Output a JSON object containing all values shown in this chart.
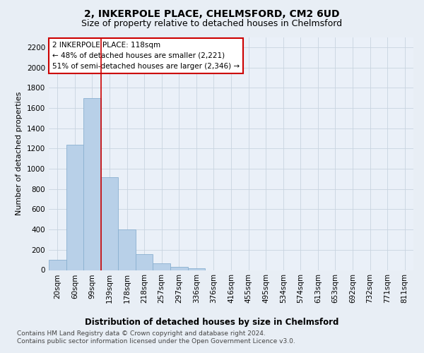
{
  "title": "2, INKERPOLE PLACE, CHELMSFORD, CM2 6UD",
  "subtitle": "Size of property relative to detached houses in Chelmsford",
  "xlabel": "Distribution of detached houses by size in Chelmsford",
  "ylabel": "Number of detached properties",
  "bar_labels": [
    "20sqm",
    "60sqm",
    "99sqm",
    "139sqm",
    "178sqm",
    "218sqm",
    "257sqm",
    "297sqm",
    "336sqm",
    "376sqm",
    "416sqm",
    "455sqm",
    "495sqm",
    "534sqm",
    "574sqm",
    "613sqm",
    "653sqm",
    "692sqm",
    "732sqm",
    "771sqm",
    "811sqm"
  ],
  "bar_values": [
    100,
    1240,
    1700,
    920,
    400,
    155,
    65,
    30,
    20,
    0,
    0,
    0,
    0,
    0,
    0,
    0,
    0,
    0,
    0,
    0,
    0
  ],
  "bar_color": "#b8d0e8",
  "bar_edge_color": "#8ab0d0",
  "vline_x": 2.5,
  "vline_color": "#cc0000",
  "annotation_text": "2 INKERPOLE PLACE: 118sqm\n← 48% of detached houses are smaller (2,221)\n51% of semi-detached houses are larger (2,346) →",
  "annotation_box_color": "#ffffff",
  "annotation_box_edge": "#cc0000",
  "ylim": [
    0,
    2300
  ],
  "yticks": [
    0,
    200,
    400,
    600,
    800,
    1000,
    1200,
    1400,
    1600,
    1800,
    2000,
    2200
  ],
  "bg_color": "#e8eef5",
  "plot_bg_color": "#eaf0f8",
  "footer": "Contains HM Land Registry data © Crown copyright and database right 2024.\nContains public sector information licensed under the Open Government Licence v3.0.",
  "title_fontsize": 10,
  "subtitle_fontsize": 9,
  "xlabel_fontsize": 8.5,
  "ylabel_fontsize": 8,
  "tick_fontsize": 7.5,
  "footer_fontsize": 6.5
}
